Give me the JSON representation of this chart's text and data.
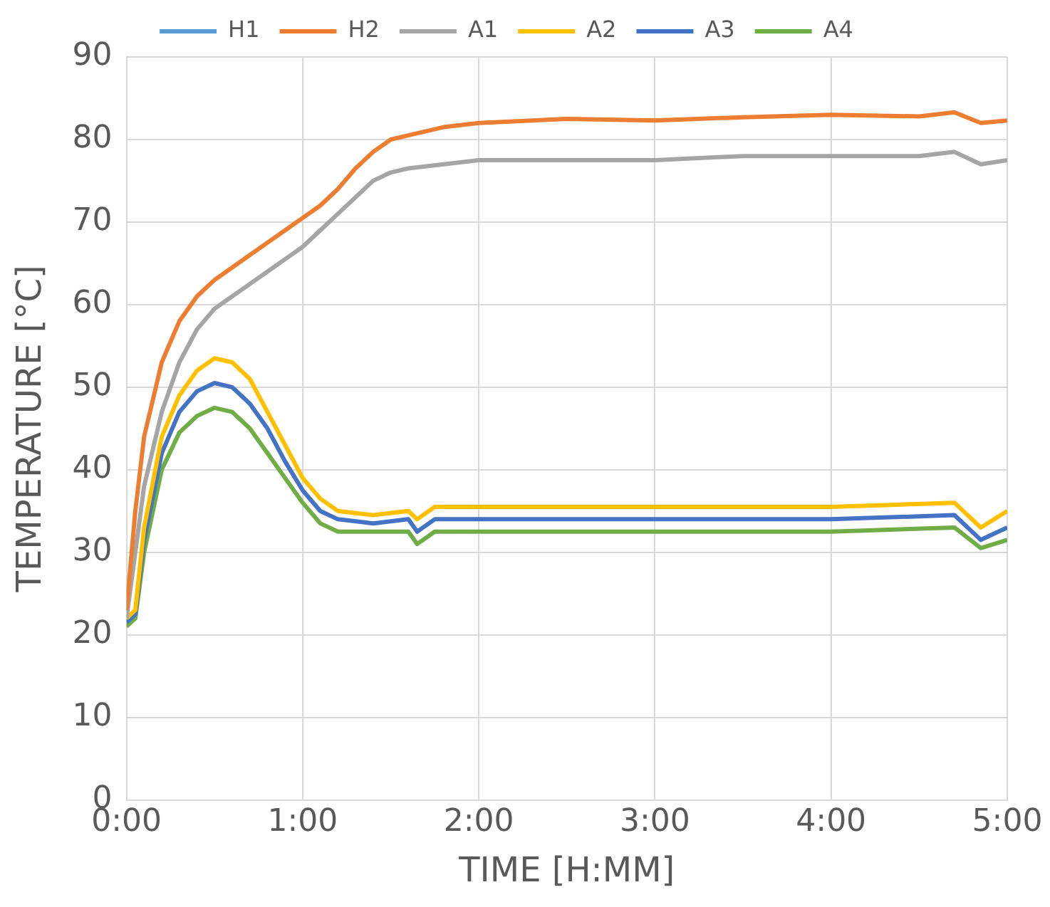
{
  "chart_data": {
    "type": "line",
    "xlabel": "TIME [H:MM]",
    "ylabel": "TEMPERATURE [°C]",
    "xlim": [
      0,
      5
    ],
    "xticks": [
      {
        "value": 0,
        "label": "0:00"
      },
      {
        "value": 1,
        "label": "1:00"
      },
      {
        "value": 2,
        "label": "2:00"
      },
      {
        "value": 3,
        "label": "3:00"
      },
      {
        "value": 4,
        "label": "4:00"
      },
      {
        "value": 5,
        "label": "5:00"
      }
    ],
    "ylim": [
      0,
      90
    ],
    "yticks": [
      0,
      10,
      20,
      30,
      40,
      50,
      60,
      70,
      80,
      90
    ],
    "grid": true,
    "legend": "top",
    "marker": "none",
    "line_style": "solid",
    "series": [
      {
        "name": "H1",
        "color": "#5b9bd5"
      },
      {
        "name": "H2",
        "color": "#ed7d31",
        "x": [
          0,
          0.05,
          0.1,
          0.2,
          0.3,
          0.4,
          0.5,
          0.6,
          0.7,
          0.8,
          0.9,
          1.0,
          1.1,
          1.2,
          1.3,
          1.4,
          1.5,
          1.6,
          1.7,
          1.8,
          2.0,
          2.5,
          3.0,
          3.5,
          4.0,
          4.5,
          4.7,
          4.85,
          5.0
        ],
        "values": [
          23,
          35,
          44,
          53,
          58,
          61,
          63,
          64.5,
          66,
          67.5,
          69,
          70.5,
          72,
          74,
          76.5,
          78.5,
          80,
          80.5,
          81,
          81.5,
          82,
          82.5,
          82.3,
          82.7,
          83,
          82.8,
          83.3,
          82,
          82.3
        ]
      },
      {
        "name": "A1",
        "color": "#a5a5a5",
        "x": [
          0,
          0.05,
          0.1,
          0.2,
          0.3,
          0.4,
          0.5,
          0.6,
          0.7,
          0.8,
          0.9,
          1.0,
          1.1,
          1.2,
          1.3,
          1.4,
          1.5,
          1.6,
          1.8,
          2.0,
          2.5,
          3.0,
          3.5,
          4.0,
          4.5,
          4.7,
          4.85,
          5.0
        ],
        "values": [
          22,
          30,
          38,
          47,
          53,
          57,
          59.5,
          61,
          62.5,
          64,
          65.5,
          67,
          69,
          71,
          73,
          75,
          76,
          76.5,
          77,
          77.5,
          77.5,
          77.5,
          78,
          78,
          78,
          78.5,
          77,
          77.5
        ]
      },
      {
        "name": "A2",
        "color": "#ffc000",
        "x": [
          0,
          0.05,
          0.1,
          0.2,
          0.3,
          0.4,
          0.5,
          0.6,
          0.7,
          0.8,
          0.9,
          1.0,
          1.1,
          1.2,
          1.4,
          1.6,
          1.65,
          1.75,
          2.0,
          3.0,
          4.0,
          4.7,
          4.85,
          5.0
        ],
        "values": [
          22,
          23,
          33,
          44,
          49,
          52,
          53.5,
          53,
          51,
          47,
          43,
          39,
          36.5,
          35,
          34.5,
          35,
          34,
          35.5,
          35.5,
          35.5,
          35.5,
          36,
          33,
          35
        ]
      },
      {
        "name": "A3",
        "color": "#4472c4",
        "x": [
          0,
          0.05,
          0.1,
          0.2,
          0.3,
          0.4,
          0.5,
          0.6,
          0.7,
          0.8,
          0.9,
          1.0,
          1.1,
          1.2,
          1.4,
          1.6,
          1.65,
          1.75,
          2.0,
          3.0,
          4.0,
          4.7,
          4.85,
          5.0
        ],
        "values": [
          21.5,
          22.5,
          31.5,
          42,
          47,
          49.5,
          50.5,
          50,
          48,
          45,
          41,
          37.5,
          35,
          34,
          33.5,
          34,
          32.5,
          34,
          34,
          34,
          34,
          34.5,
          31.5,
          33
        ]
      },
      {
        "name": "A4",
        "color": "#70ad47",
        "x": [
          0,
          0.05,
          0.1,
          0.2,
          0.3,
          0.4,
          0.5,
          0.6,
          0.7,
          0.8,
          0.9,
          1.0,
          1.1,
          1.2,
          1.6,
          1.65,
          1.75,
          2.0,
          3.0,
          4.0,
          4.7,
          4.85,
          5.0
        ],
        "values": [
          21,
          22,
          30,
          40,
          44.5,
          46.5,
          47.5,
          47,
          45,
          42,
          39,
          36,
          33.5,
          32.5,
          32.5,
          31,
          32.5,
          32.5,
          32.5,
          32.5,
          33,
          30.5,
          31.5
        ]
      }
    ]
  }
}
